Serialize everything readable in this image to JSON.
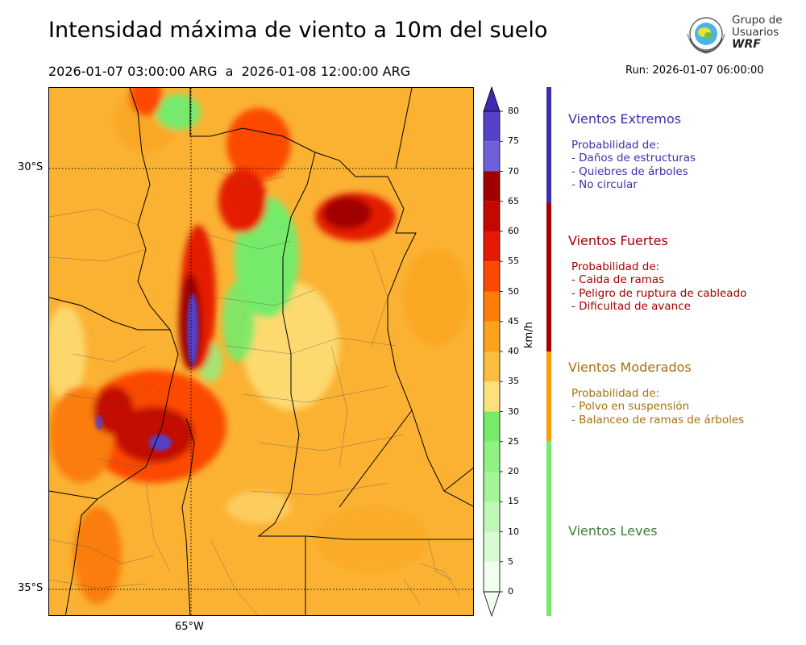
{
  "header": {
    "title": "Intensidad máxima de viento a 10m del suelo",
    "period": "2026-01-07 03:00:00 ARG  a  2026-01-08 12:00:00 ARG",
    "run": "Run: 2026-01-07 06:00:00"
  },
  "logo": {
    "line1": "Grupo de",
    "line2": "Usuarios",
    "line3": "WRF"
  },
  "map": {
    "lat_labels": [
      "30°S",
      "35°S"
    ],
    "lon_labels": [
      "65°W"
    ]
  },
  "chart_data": {
    "type": "heatmap",
    "title": "Intensidad máxima de viento a 10m del suelo",
    "colorbar": {
      "label": "km/h",
      "ticks": [
        0,
        5,
        10,
        15,
        20,
        25,
        30,
        35,
        40,
        45,
        50,
        55,
        60,
        65,
        70,
        75,
        80
      ],
      "colors": [
        "#f2fef0",
        "#d9fbd3",
        "#bff8b6",
        "#a4f498",
        "#8ff083",
        "#76ea6a",
        "#fde07b",
        "#fbbd40",
        "#f9a21c",
        "#fa7d09",
        "#fc4a04",
        "#e41b02",
        "#c30800",
        "#a10000",
        "#7060d8",
        "#5540c8",
        "#3e2ab0"
      ],
      "extend": "both"
    },
    "categories": [
      {
        "name": "Vientos Extremos",
        "range": [
          65,
          85
        ],
        "color": "#3b30b0",
        "text_color": "#3b30b0",
        "probability_label": "Probabilidad de:",
        "items": [
          "- Daños de estructuras",
          "- Quiebres de árboles",
          "- No circular"
        ]
      },
      {
        "name": "Vientos Fuertes",
        "range": [
          40,
          65
        ],
        "color": "#a50000",
        "text_color": "#a50000",
        "probability_label": "Probabilidad de:",
        "items": [
          "- Caida de ramas",
          "- Peligro de ruptura de cableado",
          "- Dificultad de avance"
        ]
      },
      {
        "name": "Vientos Moderados",
        "range": [
          25,
          40
        ],
        "color": "#fb9c0c",
        "text_color": "#a8700f",
        "probability_label": "Probabilidad de:",
        "items": [
          "- Polvo en suspensión",
          "- Balanceo de ramas de árboles"
        ]
      },
      {
        "name": "Vientos Leves",
        "range": [
          0,
          25
        ],
        "color": "#76ea6a",
        "text_color": "#3c7f38",
        "probability_label": "",
        "items": []
      }
    ]
  }
}
